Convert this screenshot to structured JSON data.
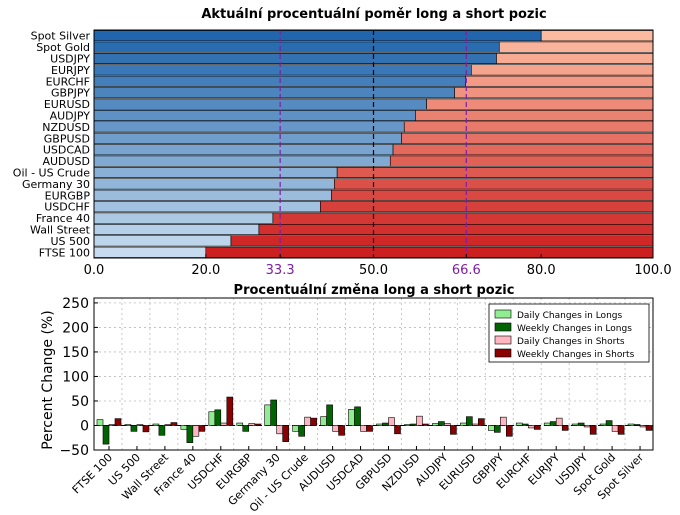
{
  "chart_data": [
    {
      "type": "bar",
      "orientation": "horizontal",
      "stacked": true,
      "title": "Aktuální procentuální poměr long a short pozic",
      "categories": [
        "Spot Silver",
        "Spot Gold",
        "USDJPY",
        "EURJPY",
        "EURCHF",
        "GBPJPY",
        "EURUSD",
        "AUDJPY",
        "NZDUSD",
        "GBPUSD",
        "USDCAD",
        "AUDUSD",
        "Oil - US Crude",
        "Germany 30",
        "EURGBP",
        "USDCHF",
        "France 40",
        "Wall Street",
        "US 500",
        "FTSE 100"
      ],
      "series": [
        {
          "values": [
            80,
            72.5,
            72,
            67.5,
            66.5,
            64.5,
            59.5,
            57.5,
            55.5,
            55,
            53.5,
            53,
            43.5,
            43,
            42.5,
            40.5,
            32,
            29.5,
            24.5,
            20
          ]
        },
        {
          "values": [
            20,
            27.5,
            28,
            32.5,
            33.5,
            35.5,
            40.5,
            42.5,
            44.5,
            45,
            46.5,
            47,
            56.5,
            57,
            57.5,
            59.5,
            68,
            70.5,
            75.5,
            80
          ]
        }
      ],
      "xlim": [
        0,
        100
      ],
      "xticks": [
        "0.0",
        "20.0",
        "33.3",
        "50.0",
        "66.6",
        "80.0",
        "100.0"
      ],
      "reference_lines": [
        33.3,
        50,
        66.6
      ],
      "colors": {
        "long_dark": "#2166ac",
        "long_light": "#c6dbef",
        "short_dark": "#cc2020",
        "short_light": "#fcbba1",
        "ref_line": "#7b1fa2"
      }
    },
    {
      "type": "bar",
      "title": "Procentuální změna long a short pozic",
      "ylabel": "Percent Change (%)",
      "ylim": [
        -50,
        260
      ],
      "yticks": [
        "250",
        "200",
        "150",
        "100",
        "50",
        "0",
        "−50"
      ],
      "categories": [
        "FTSE 100",
        "US 500",
        "Wall Street",
        "France 40",
        "USDCHF",
        "EURGBP",
        "Germany 30",
        "Oil - US Crude",
        "AUDUSD",
        "USDCAD",
        "GBPUSD",
        "NZDUSD",
        "AUDJPY",
        "EURUSD",
        "GBPJPY",
        "EURCHF",
        "EURJPY",
        "USDJPY",
        "Spot Gold",
        "Spot Silver"
      ],
      "legend_position": "top-right",
      "series": [
        {
          "name": "Daily Changes in Longs",
          "color": "#90ee90",
          "values": [
            12,
            2,
            3,
            -8,
            28,
            5,
            42,
            -12,
            18,
            33,
            3,
            2,
            4,
            5,
            -10,
            5,
            5,
            3,
            3,
            3
          ]
        },
        {
          "name": "Weekly Changes in Longs",
          "color": "#006400",
          "values": [
            -38,
            -12,
            -20,
            -35,
            32,
            -12,
            52,
            -22,
            42,
            38,
            5,
            3,
            8,
            18,
            -14,
            3,
            8,
            5,
            10,
            2
          ]
        },
        {
          "name": "Daily Changes in Shorts",
          "color": "#ffb6c1",
          "values": [
            2,
            2,
            2,
            -22,
            5,
            4,
            -17,
            17,
            -12,
            -12,
            16,
            19,
            4,
            3,
            17,
            -5,
            15,
            -3,
            -12,
            -3
          ]
        },
        {
          "name": "Weekly Changes in Shorts",
          "color": "#8b0000",
          "values": [
            14,
            -13,
            6,
            -12,
            58,
            3,
            -33,
            15,
            -20,
            -12,
            -17,
            3,
            -18,
            14,
            -22,
            -8,
            -10,
            -18,
            -18,
            -10
          ]
        }
      ]
    }
  ]
}
